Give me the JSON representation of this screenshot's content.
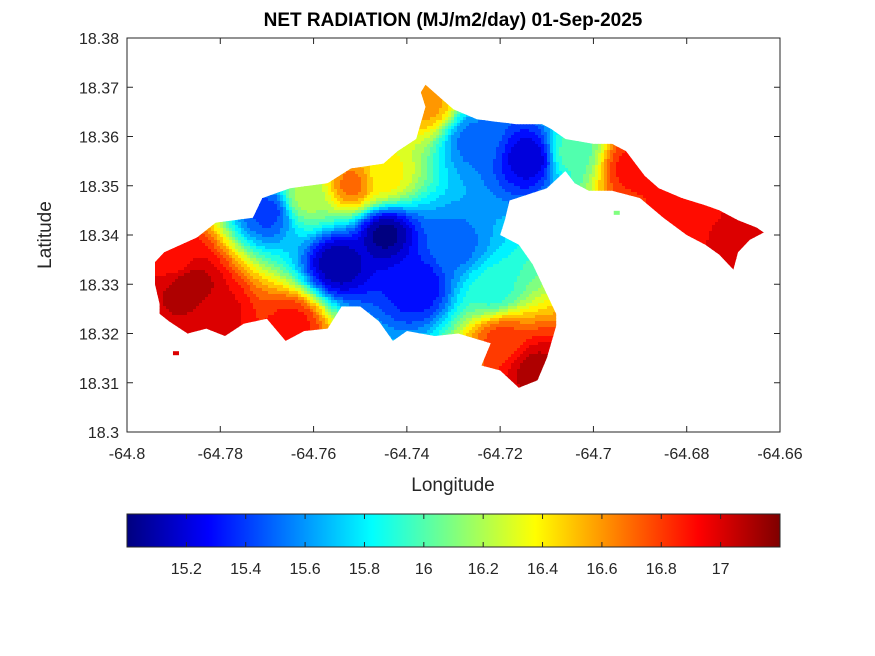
{
  "chart_data": {
    "type": "heatmap",
    "title": "NET RADIATION (MJ/m2/day) 01-Sep-2025",
    "xlabel": "Longitude",
    "ylabel": "Latitude",
    "xlim": [
      -64.8,
      -64.66
    ],
    "ylim": [
      18.3,
      18.38
    ],
    "x_ticks": [
      -64.8,
      -64.78,
      -64.76,
      -64.74,
      -64.72,
      -64.7,
      -64.68,
      -64.66
    ],
    "x_tick_labels": [
      "-64.8",
      "-64.78",
      "-64.76",
      "-64.74",
      "-64.72",
      "-64.7",
      "-64.68",
      "-64.66"
    ],
    "y_ticks": [
      18.3,
      18.31,
      18.32,
      18.33,
      18.34,
      18.35,
      18.36,
      18.37,
      18.38
    ],
    "y_tick_labels": [
      "18.3",
      "18.31",
      "18.32",
      "18.33",
      "18.34",
      "18.35",
      "18.36",
      "18.37",
      "18.38"
    ],
    "grid": false,
    "colormap": "jet",
    "color_range": [
      15.0,
      17.2
    ],
    "colorbar": {
      "placement": "bottom",
      "ticks": [
        15.2,
        15.4,
        15.6,
        15.8,
        16,
        16.2,
        16.4,
        16.6,
        16.8,
        17
      ],
      "tick_labels": [
        "15.2",
        "15.4",
        "15.6",
        "15.8",
        "16",
        "16.2",
        "16.4",
        "16.6",
        "16.8",
        "17"
      ]
    },
    "island_outline": [
      [
        -64.792,
        18.3365
      ],
      [
        -64.785,
        18.3395
      ],
      [
        -64.781,
        18.3425
      ],
      [
        -64.773,
        18.3435
      ],
      [
        -64.771,
        18.3475
      ],
      [
        -64.765,
        18.3495
      ],
      [
        -64.757,
        18.3505
      ],
      [
        -64.752,
        18.3535
      ],
      [
        -64.745,
        18.3545
      ],
      [
        -64.742,
        18.357
      ],
      [
        -64.738,
        18.3595
      ],
      [
        -64.736,
        18.366
      ],
      [
        -64.737,
        18.369
      ],
      [
        -64.736,
        18.3705
      ],
      [
        -64.733,
        18.368
      ],
      [
        -64.73,
        18.3655
      ],
      [
        -64.725,
        18.3635
      ],
      [
        -64.721,
        18.363
      ],
      [
        -64.7165,
        18.3625
      ],
      [
        -64.711,
        18.3625
      ],
      [
        -64.709,
        18.3615
      ],
      [
        -64.706,
        18.3595
      ],
      [
        -64.7,
        18.3585
      ],
      [
        -64.696,
        18.3585
      ],
      [
        -64.693,
        18.357
      ],
      [
        -64.691,
        18.3545
      ],
      [
        -64.689,
        18.352
      ],
      [
        -64.686,
        18.3495
      ],
      [
        -64.681,
        18.3475
      ],
      [
        -64.676,
        18.346
      ],
      [
        -64.673,
        18.345
      ],
      [
        -64.669,
        18.343
      ],
      [
        -64.665,
        18.3415
      ],
      [
        -64.6635,
        18.3405
      ],
      [
        -64.6665,
        18.339
      ],
      [
        -64.669,
        18.3365
      ],
      [
        -64.67,
        18.333
      ],
      [
        -64.671,
        18.334
      ],
      [
        -64.673,
        18.336
      ],
      [
        -64.676,
        18.338
      ],
      [
        -64.68,
        18.34
      ],
      [
        -64.685,
        18.3435
      ],
      [
        -64.69,
        18.3475
      ],
      [
        -64.696,
        18.349
      ],
      [
        -64.701,
        18.349
      ],
      [
        -64.704,
        18.3505
      ],
      [
        -64.706,
        18.353
      ],
      [
        -64.71,
        18.3495
      ],
      [
        -64.718,
        18.347
      ],
      [
        -64.719,
        18.343
      ],
      [
        -64.72,
        18.34
      ],
      [
        -64.716,
        18.338
      ],
      [
        -64.713,
        18.334
      ],
      [
        -64.711,
        18.33
      ],
      [
        -64.708,
        18.324
      ],
      [
        -64.708,
        18.3215
      ],
      [
        -64.71,
        18.315
      ],
      [
        -64.712,
        18.3105
      ],
      [
        -64.716,
        18.309
      ],
      [
        -64.72,
        18.3125
      ],
      [
        -64.724,
        18.3135
      ],
      [
        -64.722,
        18.318
      ],
      [
        -64.729,
        18.32
      ],
      [
        -64.734,
        18.3195
      ],
      [
        -64.74,
        18.3205
      ],
      [
        -64.743,
        18.3185
      ],
      [
        -64.746,
        18.3225
      ],
      [
        -64.75,
        18.3255
      ],
      [
        -64.754,
        18.3255
      ],
      [
        -64.757,
        18.321
      ],
      [
        -64.762,
        18.3205
      ],
      [
        -64.766,
        18.3185
      ],
      [
        -64.77,
        18.323
      ],
      [
        -64.775,
        18.322
      ],
      [
        -64.779,
        18.3195
      ],
      [
        -64.783,
        18.321
      ],
      [
        -64.787,
        18.32
      ],
      [
        -64.791,
        18.3225
      ],
      [
        -64.793,
        18.324
      ],
      [
        -64.793,
        18.326
      ],
      [
        -64.794,
        18.33
      ],
      [
        -64.794,
        18.3345
      ]
    ],
    "hotspots": [
      {
        "lon": -64.745,
        "lat": 18.3405,
        "value": 15.0
      },
      {
        "lon": -64.755,
        "lat": 18.3345,
        "value": 15.05
      },
      {
        "lon": -64.738,
        "lat": 18.33,
        "value": 15.25
      },
      {
        "lon": -64.714,
        "lat": 18.356,
        "value": 15.15
      },
      {
        "lon": -64.726,
        "lat": 18.3595,
        "value": 15.5
      },
      {
        "lon": -64.77,
        "lat": 18.345,
        "value": 15.4
      },
      {
        "lon": -64.73,
        "lat": 18.338,
        "value": 15.5
      },
      {
        "lon": -64.722,
        "lat": 18.329,
        "value": 15.9
      },
      {
        "lon": -64.705,
        "lat": 18.357,
        "value": 16.0
      },
      {
        "lon": -64.745,
        "lat": 18.352,
        "value": 16.4
      },
      {
        "lon": -64.762,
        "lat": 18.348,
        "value": 16.2
      },
      {
        "lon": -64.787,
        "lat": 18.33,
        "value": 17.15
      },
      {
        "lon": -64.781,
        "lat": 18.324,
        "value": 17.0
      },
      {
        "lon": -64.79,
        "lat": 18.335,
        "value": 16.9
      },
      {
        "lon": -64.736,
        "lat": 18.367,
        "value": 16.6
      },
      {
        "lon": -64.713,
        "lat": 18.313,
        "value": 17.1
      },
      {
        "lon": -64.72,
        "lat": 18.319,
        "value": 16.8
      },
      {
        "lon": -64.669,
        "lat": 18.3385,
        "value": 17.0
      },
      {
        "lon": -64.682,
        "lat": 18.3455,
        "value": 16.9
      },
      {
        "lon": -64.692,
        "lat": 18.354,
        "value": 16.9
      },
      {
        "lon": -64.765,
        "lat": 18.322,
        "value": 16.9
      },
      {
        "lon": -64.752,
        "lat": 18.3505,
        "value": 16.7
      }
    ],
    "outlier_dots": [
      {
        "lon": -64.7895,
        "lat": 18.316,
        "value": 17.0
      },
      {
        "lon": -64.695,
        "lat": 18.3445,
        "value": 16.1
      }
    ]
  }
}
